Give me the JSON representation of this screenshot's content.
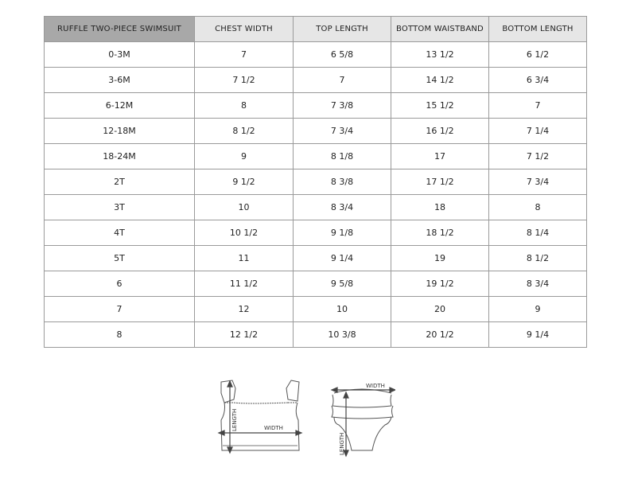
{
  "table": {
    "headers": [
      "RUFFLE TWO-PIECE SWIMSUIT",
      "CHEST WIDTH",
      "TOP LENGTH",
      "BOTTOM WAISTBAND",
      "BOTTOM LENGTH"
    ],
    "rows": [
      [
        "0-3M",
        "7",
        "6 5/8",
        "13 1/2",
        "6 1/2"
      ],
      [
        "3-6M",
        "7 1/2",
        "7",
        "14 1/2",
        "6 3/4"
      ],
      [
        "6-12M",
        "8",
        "7 3/8",
        "15 1/2",
        "7"
      ],
      [
        "12-18M",
        "8 1/2",
        "7 3/4",
        "16 1/2",
        "7 1/4"
      ],
      [
        "18-24M",
        "9",
        "8 1/8",
        "17",
        "7 1/2"
      ],
      [
        "2T",
        "9 1/2",
        "8 3/8",
        "17 1/2",
        "7 3/4"
      ],
      [
        "3T",
        "10",
        "8 3/4",
        "18",
        "8"
      ],
      [
        "4T",
        "10 1/2",
        "9 1/8",
        "18 1/2",
        "8 1/4"
      ],
      [
        "5T",
        "11",
        "9 1/4",
        "19",
        "8 1/2"
      ],
      [
        "6",
        "11 1/2",
        "9 5/8",
        "19 1/2",
        "8 3/4"
      ],
      [
        "7",
        "12",
        "10",
        "20",
        "9"
      ],
      [
        "8",
        "12 1/2",
        "10 3/8",
        "20 1/2",
        "9 1/4"
      ]
    ]
  },
  "diagrams": {
    "top": {
      "length_label": "LENGTH",
      "width_label": "WIDTH"
    },
    "bottom": {
      "length_label": "LENGTH",
      "width_label": "WIDTH"
    }
  },
  "colors": {
    "header_first": "#a8a8a8",
    "header": "#e6e6e6",
    "border": "#9a9a9a"
  }
}
